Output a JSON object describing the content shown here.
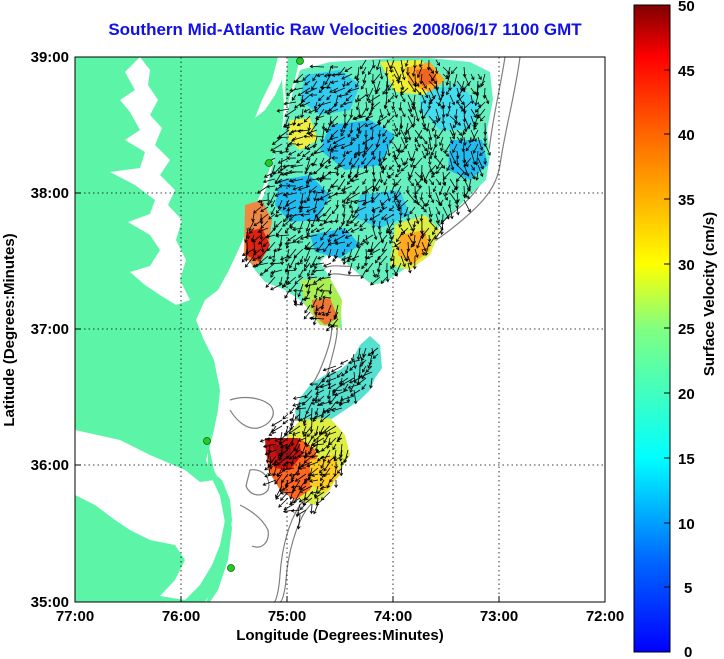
{
  "title": "Southern Mid-Atlantic Raw Velocities 2008/06/17 1100 GMT",
  "map": {
    "xlabel": "Longitude (Degrees:Minutes)",
    "ylabel": "Latitude (Degrees:Minutes)",
    "x_ticks": [
      "77:00",
      "76:00",
      "75:00",
      "74:00",
      "73:00",
      "72:00"
    ],
    "y_ticks": [
      "39:00",
      "38:00",
      "37:00",
      "36:00",
      "35:00"
    ],
    "lon_range": [
      -77,
      -72
    ],
    "lat_range": [
      35,
      39
    ],
    "grid": "dotted",
    "land_color": "#5cf5a8",
    "arrow_color": "#000000",
    "isobath_color": "#808080",
    "station_color": "#22cc22"
  },
  "colorbar": {
    "label": "Surface Velocity (cm/s)",
    "ticks": [
      "50",
      "45",
      "40",
      "35",
      "30",
      "25",
      "20",
      "15",
      "10",
      "5",
      "0"
    ],
    "range": [
      0,
      50
    ],
    "colormap": "jet"
  }
}
